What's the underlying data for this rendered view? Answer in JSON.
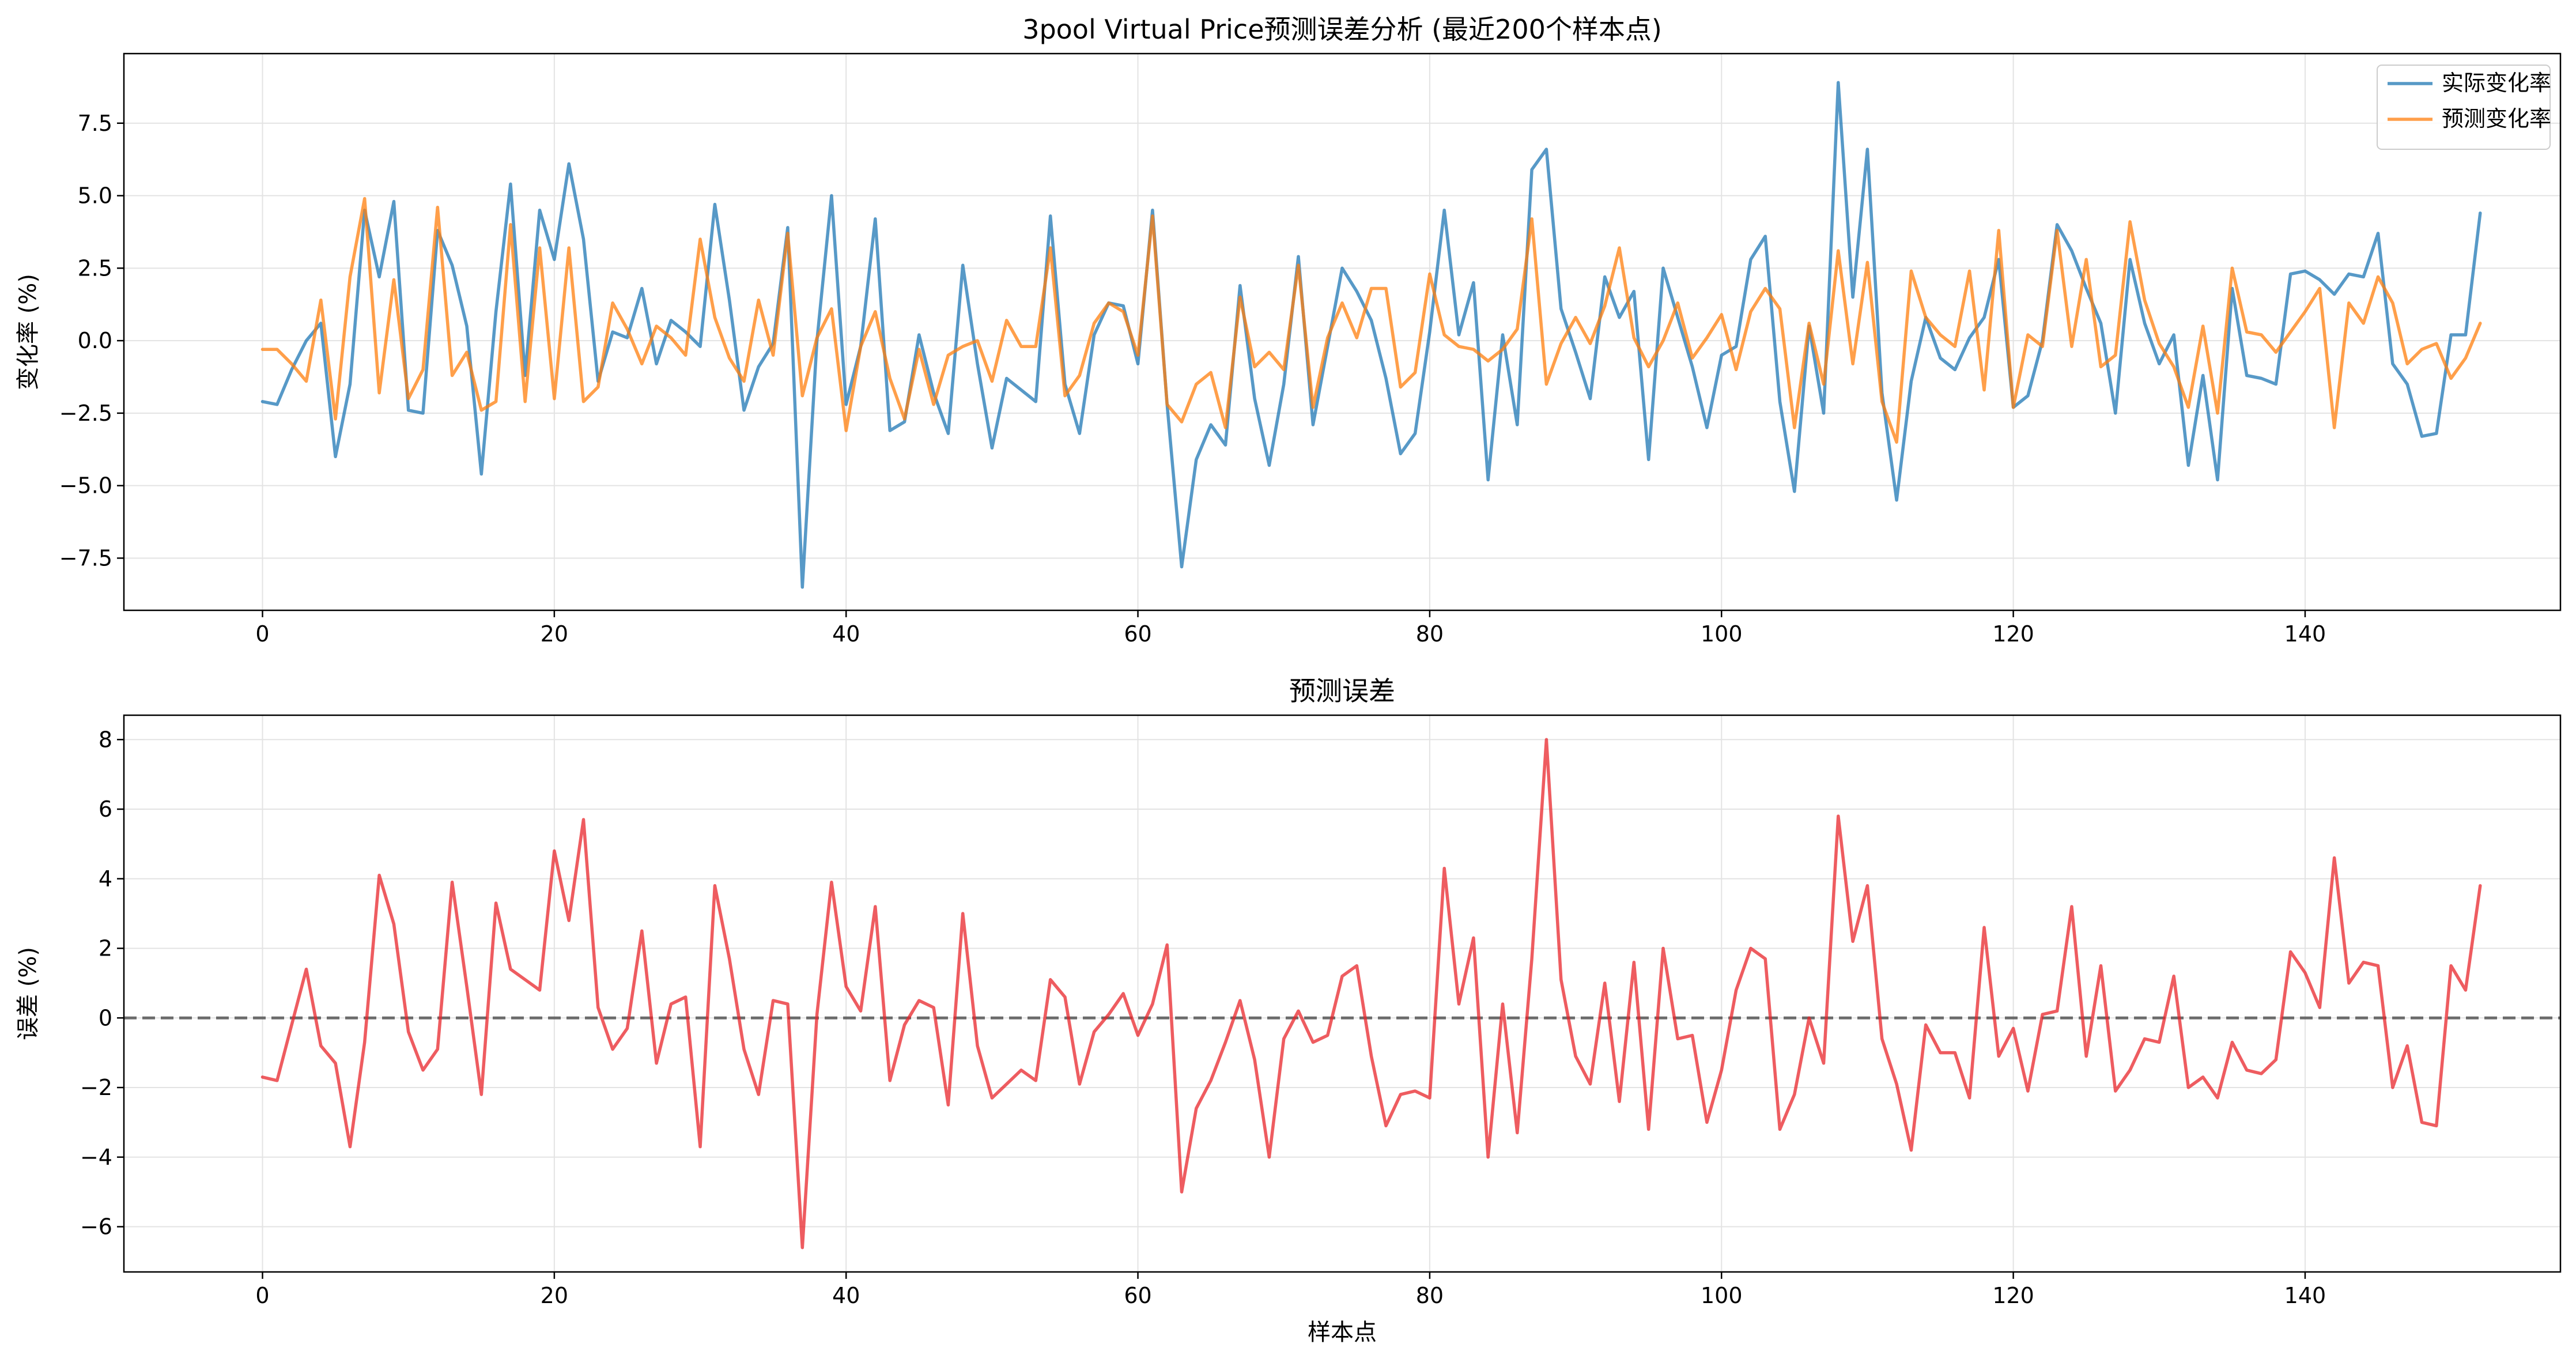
{
  "chart_data": [
    {
      "type": "line",
      "title": "3pool Virtual Price预测误差分析 (最近200个样本点)",
      "xlabel": "",
      "ylabel": "变化率 (%)",
      "xlim": [
        -9.5,
        157.5
      ],
      "ylim": [
        -9.3,
        9.9
      ],
      "xticks": [
        0,
        20,
        40,
        60,
        80,
        100,
        120,
        140
      ],
      "yticks": [
        -7.5,
        -5.0,
        -2.5,
        0.0,
        2.5,
        5.0,
        7.5
      ],
      "xtick_labels": [
        "0",
        "20",
        "40",
        "60",
        "80",
        "100",
        "120",
        "140"
      ],
      "ytick_labels": [
        "−7.5",
        "−5.0",
        "−2.5",
        "0.0",
        "2.5",
        "5.0",
        "7.5"
      ],
      "grid": true,
      "legend": "top-right",
      "series": [
        {
          "name": "实际变化率",
          "color": "#1f77b4",
          "values": [
            -2.1,
            -2.2,
            -1.0,
            0.0,
            0.6,
            -4.0,
            -1.5,
            4.5,
            2.2,
            4.8,
            -2.4,
            -2.5,
            3.8,
            2.6,
            0.5,
            -4.6,
            1.0,
            5.4,
            -1.2,
            4.5,
            2.8,
            6.1,
            3.5,
            -1.4,
            0.3,
            0.1,
            1.8,
            -0.8,
            0.7,
            0.3,
            -0.2,
            4.7,
            1.4,
            -2.4,
            -0.9,
            -0.1,
            3.9,
            -8.5,
            0.0,
            5.0,
            -2.2,
            -0.2,
            4.2,
            -3.1,
            -2.8,
            0.2,
            -1.8,
            -3.2,
            2.6,
            -0.8,
            -3.7,
            -1.3,
            -1.7,
            -2.1,
            4.3,
            -1.5,
            -3.2,
            0.2,
            1.3,
            1.2,
            -0.8,
            4.5,
            -2.2,
            -7.8,
            -4.1,
            -2.9,
            -3.6,
            1.9,
            -2.0,
            -4.3,
            -1.5,
            2.9,
            -2.9,
            -0.2,
            2.5,
            1.7,
            0.7,
            -1.3,
            -3.9,
            -3.2,
            0.3,
            4.5,
            0.2,
            2.0,
            -4.8,
            0.2,
            -2.9,
            5.9,
            6.6,
            1.1,
            -0.4,
            -2.0,
            2.2,
            0.8,
            1.7,
            -4.1,
            2.5,
            0.8,
            -0.9,
            -3.0,
            -0.5,
            -0.2,
            2.8,
            3.6,
            -2.1,
            -5.2,
            0.5,
            -2.5,
            8.9,
            1.5,
            6.6,
            -1.8,
            -5.5,
            -1.4,
            0.8,
            -0.6,
            -1.0,
            0.1,
            0.8,
            2.8,
            -2.3,
            -1.9,
            0.0,
            4.0,
            3.1,
            1.8,
            0.6,
            -2.5,
            2.8,
            0.6,
            -0.8,
            0.2,
            -4.3,
            -1.2,
            -4.8,
            1.8,
            -1.2,
            -1.3,
            -1.5,
            2.3,
            2.4,
            2.1,
            1.6,
            2.3,
            2.2,
            3.7,
            -0.8,
            -1.5,
            -3.3,
            -3.2,
            0.2,
            0.2,
            4.4
          ]
        },
        {
          "name": "预测变化率",
          "color": "#ff7f0e",
          "values": [
            -0.3,
            -0.3,
            -0.8,
            -1.4,
            1.4,
            -2.7,
            2.2,
            4.9,
            -1.8,
            2.1,
            -2.0,
            -1.0,
            4.6,
            -1.2,
            -0.4,
            -2.4,
            -2.1,
            4.0,
            -2.1,
            3.2,
            -2.0,
            3.2,
            -2.1,
            -1.6,
            1.3,
            0.4,
            -0.8,
            0.5,
            0.1,
            -0.5,
            3.5,
            0.8,
            -0.6,
            -1.4,
            1.4,
            -0.5,
            3.7,
            -1.9,
            0.1,
            1.1,
            -3.1,
            -0.2,
            1.0,
            -1.3,
            -2.7,
            -0.3,
            -2.2,
            -0.5,
            -0.2,
            0.0,
            -1.4,
            0.7,
            -0.2,
            -0.2,
            3.2,
            -1.9,
            -1.2,
            0.6,
            1.3,
            1.0,
            -0.5,
            4.3,
            -2.2,
            -2.8,
            -1.5,
            -1.1,
            -3.0,
            1.5,
            -0.9,
            -0.4,
            -1.0,
            2.6,
            -2.3,
            0.1,
            1.3,
            0.1,
            1.8,
            1.8,
            -1.6,
            -1.1,
            2.3,
            0.2,
            -0.2,
            -0.3,
            -0.7,
            -0.3,
            0.4,
            4.2,
            -1.5,
            -0.1,
            0.8,
            -0.1,
            1.2,
            3.2,
            0.1,
            -0.9,
            0.0,
            1.3,
            -0.6,
            0.1,
            0.9,
            -1.0,
            1.0,
            1.8,
            1.1,
            -3.0,
            0.6,
            -1.5,
            3.1,
            -0.8,
            2.7,
            -2.1,
            -3.5,
            2.4,
            0.8,
            0.2,
            -0.2,
            2.4,
            -1.7,
            3.8,
            -2.3,
            0.2,
            -0.2,
            3.8,
            -0.2,
            2.8,
            -0.9,
            -0.5,
            4.1,
            1.4,
            -0.1,
            -0.9,
            -2.3,
            0.5,
            -2.5,
            2.5,
            0.3,
            0.2,
            -0.4,
            0.3,
            1.0,
            1.8,
            -3.0,
            1.3,
            0.6,
            2.2,
            1.3,
            -0.8,
            -0.3,
            -0.1,
            -1.3,
            -0.6,
            0.6
          ]
        }
      ]
    },
    {
      "type": "line",
      "title": "预测误差",
      "xlabel": "样本点",
      "ylabel": "误差 (%)",
      "xlim": [
        -9.5,
        157.5
      ],
      "ylim": [
        -7.3,
        8.7
      ],
      "xticks": [
        0,
        20,
        40,
        60,
        80,
        100,
        120,
        140
      ],
      "yticks": [
        -6,
        -4,
        -2,
        0,
        2,
        4,
        6,
        8
      ],
      "xtick_labels": [
        "0",
        "20",
        "40",
        "60",
        "80",
        "100",
        "120",
        "140"
      ],
      "ytick_labels": [
        "−6",
        "−4",
        "−2",
        "0",
        "2",
        "4",
        "6",
        "8"
      ],
      "grid": true,
      "reference_line": 0,
      "reference_color": "#555555",
      "series": [
        {
          "color": "#e8262b",
          "values": [
            -1.7,
            -1.8,
            -0.2,
            1.4,
            -0.8,
            -1.3,
            -3.7,
            -0.7,
            4.1,
            2.7,
            -0.4,
            -1.5,
            -0.9,
            3.9,
            0.9,
            -2.2,
            3.3,
            1.4,
            1.1,
            0.8,
            4.8,
            2.8,
            5.7,
            0.3,
            -0.9,
            -0.3,
            2.5,
            -1.3,
            0.4,
            0.6,
            -3.7,
            3.8,
            1.7,
            -0.9,
            -2.2,
            0.5,
            0.4,
            -6.6,
            0.1,
            3.9,
            0.9,
            0.2,
            3.2,
            -1.8,
            -0.2,
            0.5,
            0.3,
            -2.5,
            3.0,
            -0.8,
            -2.3,
            -1.9,
            -1.5,
            -1.8,
            1.1,
            0.6,
            -1.9,
            -0.4,
            0.1,
            0.7,
            -0.5,
            0.4,
            2.1,
            -5.0,
            -2.6,
            -1.8,
            -0.7,
            0.5,
            -1.2,
            -4.0,
            -0.6,
            0.2,
            -0.7,
            -0.5,
            1.2,
            1.5,
            -1.1,
            -3.1,
            -2.2,
            -2.1,
            -2.3,
            4.3,
            0.4,
            2.3,
            -4.0,
            0.4,
            -3.3,
            1.7,
            8.0,
            1.1,
            -1.1,
            -1.9,
            1.0,
            -2.4,
            1.6,
            -3.2,
            2.0,
            -0.6,
            -0.5,
            -3.0,
            -1.5,
            0.8,
            2.0,
            1.7,
            -3.2,
            -2.2,
            0.0,
            -1.3,
            5.8,
            2.2,
            3.8,
            -0.6,
            -1.9,
            -3.8,
            -0.2,
            -1.0,
            -1.0,
            -2.3,
            2.6,
            -1.1,
            -0.3,
            -2.1,
            0.1,
            0.2,
            3.2,
            -1.1,
            1.5,
            -2.1,
            -1.5,
            -0.6,
            -0.7,
            1.2,
            -2.0,
            -1.7,
            -2.3,
            -0.7,
            -1.5,
            -1.6,
            -1.2,
            1.9,
            1.3,
            0.3,
            4.6,
            1.0,
            1.6,
            1.5,
            -2.0,
            -0.8,
            -3.0,
            -3.1,
            1.5,
            0.8,
            3.8
          ]
        }
      ]
    }
  ]
}
